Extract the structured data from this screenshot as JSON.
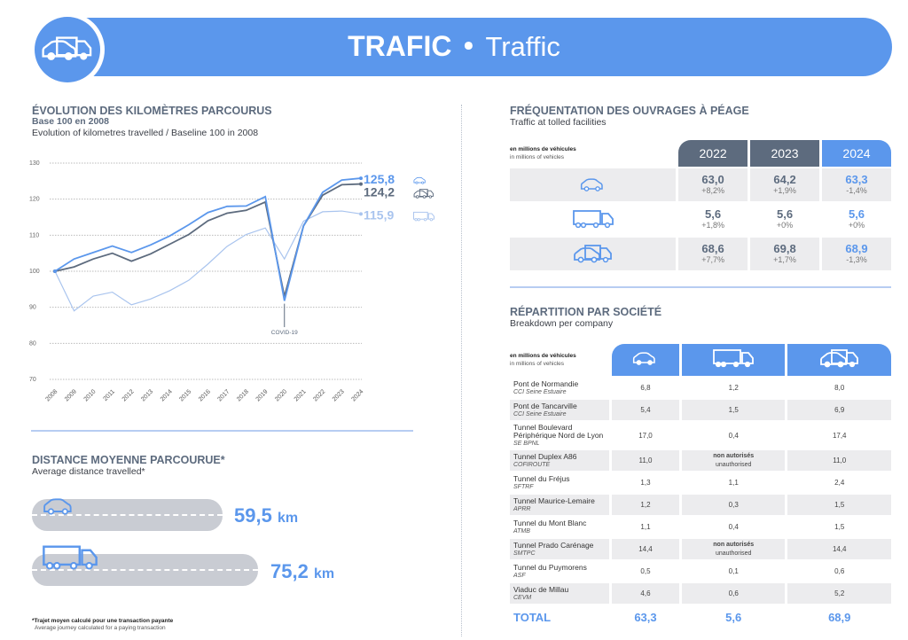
{
  "header": {
    "title_fr": "TRAFIC",
    "separator": "•",
    "title_en": "Traffic",
    "icon": "car-and-truck-icon"
  },
  "evolution": {
    "title": "ÉVOLUTION DES KILOMÈTRES PARCOURUS",
    "subtitle_fr": "Base 100 en 2008",
    "subtitle_en": "Evolution of kilometres travelled / Baseline 100 in 2008"
  },
  "chart_data": {
    "type": "line",
    "x": [
      "2008",
      "2009",
      "2010",
      "2011",
      "2012",
      "2013",
      "2014",
      "2015",
      "2016",
      "2017",
      "2018",
      "2019",
      "2020",
      "2021",
      "2022",
      "2023",
      "2024"
    ],
    "ylim": [
      70,
      130
    ],
    "yticks": [
      70,
      80,
      90,
      100,
      110,
      120,
      130
    ],
    "grid": true,
    "annotation": {
      "x": "2020",
      "text": "COVID-19"
    },
    "series": [
      {
        "icon": "car-icon",
        "end_label": "125,8",
        "color": "#5b97ec",
        "values": [
          100,
          103.4,
          105.2,
          107.0,
          105.2,
          107.3,
          109.8,
          112.9,
          116.3,
          118.0,
          118.1,
          120.7,
          91.8,
          112.6,
          121.9,
          125.3,
          125.8
        ]
      },
      {
        "icon": "car-and-truck-icon",
        "end_label": "124,2",
        "color": "#5d6b7e",
        "values": [
          100,
          101.2,
          103.4,
          105.0,
          102.8,
          104.8,
          107.5,
          110.2,
          114.0,
          116.1,
          116.9,
          119.2,
          93.0,
          112.6,
          121.1,
          124.0,
          124.2
        ]
      },
      {
        "icon": "truck-icon",
        "end_label": "115,9",
        "color": "#a9c4ee",
        "values": [
          100,
          89.0,
          93.1,
          94.2,
          90.7,
          92.3,
          94.6,
          97.5,
          102.0,
          106.9,
          110.2,
          112.0,
          103.4,
          113.9,
          116.5,
          116.7,
          115.9
        ]
      }
    ]
  },
  "distance": {
    "title": "DISTANCE MOYENNE PARCOURUE*",
    "subtitle": "Average distance travelled*",
    "items": [
      {
        "icon": "car-icon",
        "value": "59,5",
        "unit": "km"
      },
      {
        "icon": "truck-icon",
        "value": "75,2",
        "unit": "km"
      }
    ],
    "note_fr": "*Trajet moyen calculé pour une transaction payante",
    "note_en": "Average journey calculated for a paying transaction"
  },
  "tolled": {
    "title": "FRÉQUENTATION DES OUVRAGES À PÉAGE",
    "subtitle": "Traffic at tolled facilities",
    "unit_fr": "en millions de véhicules",
    "unit_en": "in millions of vehicles",
    "years": [
      "2022",
      "2023",
      "2024"
    ],
    "rows": [
      {
        "icon": "car-icon",
        "cells": [
          {
            "v": "63,0",
            "p": "+8,2%"
          },
          {
            "v": "64,2",
            "p": "+1,9%"
          },
          {
            "v": "63,3",
            "p": "-1,4%"
          }
        ]
      },
      {
        "icon": "truck-icon",
        "cells": [
          {
            "v": "5,6",
            "p": "+1,8%"
          },
          {
            "v": "5,6",
            "p": "+0%"
          },
          {
            "v": "5,6",
            "p": "+0%"
          }
        ]
      },
      {
        "icon": "car-and-truck-icon",
        "cells": [
          {
            "v": "68,6",
            "p": "+7,7%"
          },
          {
            "v": "69,8",
            "p": "+1,7%"
          },
          {
            "v": "68,9",
            "p": "-1,3%"
          }
        ]
      }
    ]
  },
  "company": {
    "title": "RÉPARTITION PAR SOCIÉTÉ",
    "subtitle": "Breakdown per company",
    "unit_fr": "en millions de véhicules",
    "unit_en": "in millions of vehicles",
    "columns": [
      "car-icon",
      "truck-icon",
      "car-and-truck-icon"
    ],
    "na_fr": "non autorisés",
    "na_en": "unauthorised",
    "rows": [
      {
        "name": "Pont de Normandie",
        "op": "CCI Seine Estuaire",
        "car": "6,8",
        "truck": "1,2",
        "total": "8,0"
      },
      {
        "name": "Pont de Tancarville",
        "op": "CCI Seine Estuaire",
        "car": "5,4",
        "truck": "1,5",
        "total": "6,9"
      },
      {
        "name": "Tunnel Boulevard Périphérique Nord de Lyon",
        "op": "SE BPNL",
        "car": "17,0",
        "truck": "0,4",
        "total": "17,4"
      },
      {
        "name": "Tunnel Duplex A86",
        "op": "COFIROUTE",
        "car": "11,0",
        "truck": null,
        "total": "11,0"
      },
      {
        "name": "Tunnel du Fréjus",
        "op": "SFTRF",
        "car": "1,3",
        "truck": "1,1",
        "total": "2,4"
      },
      {
        "name": "Tunnel Maurice-Lemaire",
        "op": "APRR",
        "car": "1,2",
        "truck": "0,3",
        "total": "1,5"
      },
      {
        "name": "Tunnel du Mont Blanc",
        "op": "ATMB",
        "car": "1,1",
        "truck": "0,4",
        "total": "1,5"
      },
      {
        "name": "Tunnel Prado Carénage",
        "op": "SMTPC",
        "car": "14,4",
        "truck": null,
        "total": "14,4"
      },
      {
        "name": "Tunnel du Puymorens",
        "op": "ASF",
        "car": "0,5",
        "truck": "0,1",
        "total": "0,6"
      },
      {
        "name": "Viaduc de Millau",
        "op": "CEVM",
        "car": "4,6",
        "truck": "0,6",
        "total": "5,2"
      }
    ],
    "total": {
      "label": "TOTAL",
      "car": "63,3",
      "truck": "5,6",
      "total": "68,9"
    }
  },
  "colors": {
    "accent": "#5b97ec",
    "dark": "#5d6b7e",
    "light": "#a9c4ee",
    "cell": "#ececee",
    "road": "#c9ccd3"
  }
}
